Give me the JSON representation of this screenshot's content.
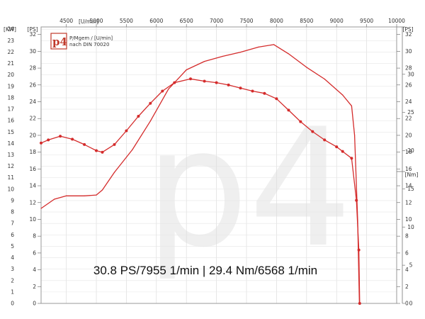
{
  "chart_data": {
    "type": "line",
    "title": "30.8 PS/7955 1/min | 29.4 Nm/6568 1/min",
    "logo": {
      "text": "p4",
      "caption_line1": "P/Mgem / [U/min]",
      "caption_line2": "nach DIN 70020"
    },
    "watermark": "p4",
    "x_axis": {
      "unit_label": "[U/min]",
      "ticks": [
        4500,
        5000,
        5500,
        6000,
        6500,
        7000,
        7500,
        8000,
        8500,
        9000,
        9500,
        10000
      ],
      "range": [
        4080,
        10000
      ]
    },
    "y_axes": {
      "kw": {
        "unit_label": "[KW]",
        "ticks": [
          0,
          1,
          2,
          3,
          4,
          5,
          6,
          7,
          8,
          9,
          10,
          11,
          12,
          13,
          14,
          15,
          16,
          17,
          18,
          19,
          20,
          21,
          22,
          23,
          24
        ],
        "range": [
          0,
          24.2
        ]
      },
      "ps_left": {
        "unit_label": "[PS]",
        "ticks": [
          0,
          2,
          4,
          6,
          8,
          10,
          12,
          14,
          16,
          18,
          20,
          22,
          24,
          26,
          28,
          30,
          32
        ],
        "range": [
          0,
          32.9
        ]
      },
      "ps_right": {
        "unit_label": "[PS]",
        "ticks": [
          0,
          2,
          4,
          6,
          8,
          10,
          12,
          14,
          16,
          18,
          20,
          22,
          24,
          26,
          28,
          30,
          32
        ],
        "range": [
          0,
          32.9
        ]
      },
      "nm": {
        "unit_label": "[Nm]",
        "ticks": [
          0,
          5,
          10,
          15,
          20,
          25,
          30
        ],
        "range": [
          0,
          36.2
        ]
      }
    },
    "series": [
      {
        "axis": "ps",
        "color": "#d42b2b",
        "marker": "none",
        "x": [
          4080,
          4300,
          4500,
          4800,
          5000,
          5100,
          5300,
          5600,
          5900,
          6200,
          6500,
          6800,
          7100,
          7400,
          7700,
          7955,
          8200,
          8500,
          8800,
          9100,
          9250,
          9300,
          9350,
          9380
        ],
        "y": [
          11.3,
          12.4,
          12.8,
          12.8,
          12.9,
          13.5,
          15.6,
          18.3,
          21.7,
          25.5,
          27.8,
          28.8,
          29.4,
          29.9,
          30.5,
          30.8,
          29.7,
          28.1,
          26.7,
          24.8,
          23.5,
          20.0,
          10.0,
          0.0
        ]
      },
      {
        "axis": "nm",
        "color": "#d42b2b",
        "marker": "dot",
        "x": [
          4080,
          4200,
          4400,
          4600,
          4800,
          5000,
          5100,
          5300,
          5500,
          5700,
          5900,
          6100,
          6300,
          6568,
          6800,
          7000,
          7200,
          7400,
          7600,
          7800,
          8000,
          8200,
          8400,
          8600,
          8800,
          9000,
          9100,
          9250,
          9330,
          9370,
          9385
        ],
        "y": [
          21.0,
          21.4,
          21.9,
          21.5,
          20.8,
          20.0,
          19.8,
          20.8,
          22.6,
          24.5,
          26.2,
          27.8,
          28.9,
          29.4,
          29.1,
          28.9,
          28.6,
          28.2,
          27.8,
          27.5,
          26.8,
          25.3,
          23.8,
          22.5,
          21.4,
          20.5,
          19.9,
          19.0,
          13.5,
          7.0,
          0.0
        ]
      }
    ]
  }
}
